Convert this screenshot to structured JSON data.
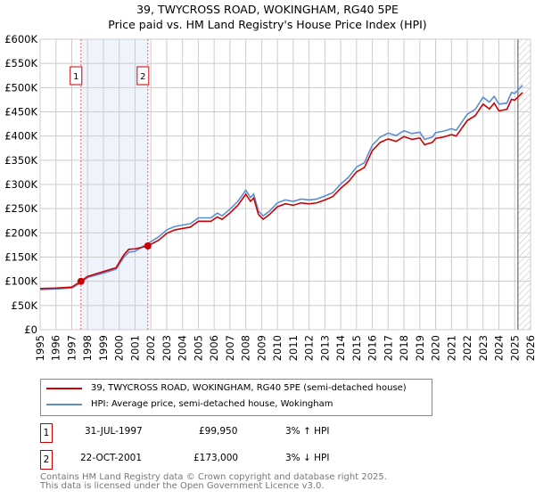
{
  "title": "39, TWYCROSS ROAD, WOKINGHAM, RG40 5PE",
  "subtitle": "Price paid vs. HM Land Registry's House Price Index (HPI)",
  "chart_data": {
    "type": "line",
    "title": "39, TWYCROSS ROAD, WOKINGHAM, RG40 5PE",
    "subtitle": "Price paid vs. HM Land Registry's House Price Index (HPI)",
    "xlim": [
      1995,
      2026
    ],
    "ylim": [
      0,
      600000
    ],
    "yticks": [
      0,
      50000,
      100000,
      150000,
      200000,
      250000,
      300000,
      350000,
      400000,
      450000,
      500000,
      550000,
      600000
    ],
    "ytick_labels": [
      "£0",
      "£50K",
      "£100K",
      "£150K",
      "£200K",
      "£250K",
      "£300K",
      "£350K",
      "£400K",
      "£450K",
      "£500K",
      "£550K",
      "£600K"
    ],
    "xticks": [
      "1995",
      "1996",
      "1997",
      "1998",
      "1999",
      "2000",
      "2001",
      "2002",
      "2003",
      "2004",
      "2005",
      "2006",
      "2007",
      "2008",
      "2009",
      "2010",
      "2011",
      "2012",
      "2013",
      "2014",
      "2015",
      "2016",
      "2017",
      "2018",
      "2019",
      "2020",
      "2021",
      "2022",
      "2023",
      "2024",
      "2025",
      "2026"
    ],
    "grid": true,
    "shaded_period": [
      1997.58,
      2001.81
    ],
    "hatched_after": 2025.2,
    "series": [
      {
        "name": "39, TWYCROSS ROAD, WOKINGHAM, RG40 5PE (semi-detached house)",
        "color": "#cc0000",
        "x": [
          1995,
          1996,
          1997,
          1997.58,
          1998,
          1999,
          1999.8,
          2000.3,
          2000.6,
          2001,
          2001.81,
          2002.5,
          2003,
          2003.5,
          2004,
          2004.5,
          2005,
          2005.8,
          2006.2,
          2006.5,
          2007,
          2007.5,
          2008,
          2008.3,
          2008.5,
          2008.8,
          2009.1,
          2009.5,
          2010,
          2010.5,
          2011,
          2011.5,
          2012,
          2012.5,
          2013,
          2013.5,
          2014,
          2014.5,
          2015,
          2015.5,
          2016,
          2016.5,
          2017,
          2017.5,
          2018,
          2018.5,
          2019,
          2019.3,
          2019.8,
          2020,
          2020.5,
          2021,
          2021.3,
          2022,
          2022.5,
          2023,
          2023.4,
          2023.7,
          2024,
          2024.5,
          2024.8,
          2025,
          2025.5
        ],
        "y": [
          85000,
          86000,
          88000,
          99950,
          110000,
          120000,
          128000,
          155000,
          166000,
          167000,
          173000,
          185000,
          199000,
          206000,
          209000,
          212000,
          224000,
          224000,
          233000,
          228000,
          241000,
          257000,
          280000,
          265000,
          272000,
          238000,
          228000,
          238000,
          254000,
          260000,
          257000,
          262000,
          260000,
          262000,
          268000,
          275000,
          292000,
          306000,
          326000,
          335000,
          370000,
          387000,
          394000,
          389000,
          399000,
          393000,
          396000,
          382000,
          387000,
          395000,
          398000,
          403000,
          400000,
          432000,
          442000,
          466000,
          456000,
          468000,
          452000,
          455000,
          476000,
          474000,
          490000
        ]
      },
      {
        "name": "HPI: Average price, semi-detached house, Wokingham",
        "color": "#5b8dd6",
        "x": [
          1995,
          1996,
          1997,
          1997.58,
          1998,
          1999,
          1999.8,
          2000.3,
          2000.6,
          2001,
          2001.81,
          2002.5,
          2003,
          2003.5,
          2004,
          2004.5,
          2005,
          2005.8,
          2006.2,
          2006.5,
          2007,
          2007.5,
          2008,
          2008.3,
          2008.5,
          2008.8,
          2009.1,
          2009.5,
          2010,
          2010.5,
          2011,
          2011.5,
          2012,
          2012.5,
          2013,
          2013.5,
          2014,
          2014.5,
          2015,
          2015.5,
          2016,
          2016.5,
          2017,
          2017.5,
          2018,
          2018.5,
          2019,
          2019.3,
          2019.8,
          2020,
          2020.5,
          2021,
          2021.3,
          2022,
          2022.5,
          2023,
          2023.4,
          2023.7,
          2024,
          2024.5,
          2024.8,
          2025,
          2025.5
        ],
        "y": [
          83000,
          84000,
          86000,
          97000,
          108000,
          117000,
          125000,
          150000,
          160000,
          162000,
          178000,
          192000,
          206000,
          213000,
          216000,
          219000,
          231000,
          231000,
          241000,
          235000,
          249000,
          265000,
          288000,
          273000,
          280000,
          245000,
          235000,
          245000,
          262000,
          268000,
          265000,
          270000,
          268000,
          270000,
          276000,
          283000,
          301000,
          315000,
          336000,
          345000,
          381000,
          398000,
          406000,
          401000,
          411000,
          405000,
          408000,
          393000,
          398000,
          407000,
          410000,
          415000,
          412000,
          445000,
          455000,
          480000,
          470000,
          482000,
          466000,
          468000,
          490000,
          488000,
          505000
        ]
      }
    ],
    "sales": [
      {
        "label": "1",
        "x": 1997.58,
        "y": 99950
      },
      {
        "label": "2",
        "x": 2001.81,
        "y": 173000
      }
    ]
  },
  "legend": {
    "property": "39, TWYCROSS ROAD, WOKINGHAM, RG40 5PE (semi-detached house)",
    "hpi": "HPI: Average price, semi-detached house, Wokingham"
  },
  "transactions": [
    {
      "num": "1",
      "date": "31-JUL-1997",
      "price": "£99,950",
      "hpi": "3% ↑ HPI"
    },
    {
      "num": "2",
      "date": "22-OCT-2001",
      "price": "£173,000",
      "hpi": "3% ↓ HPI"
    }
  ],
  "footer": [
    "Contains HM Land Registry data © Crown copyright and database right 2025.",
    "This data is licensed under the Open Government Licence v3.0."
  ]
}
